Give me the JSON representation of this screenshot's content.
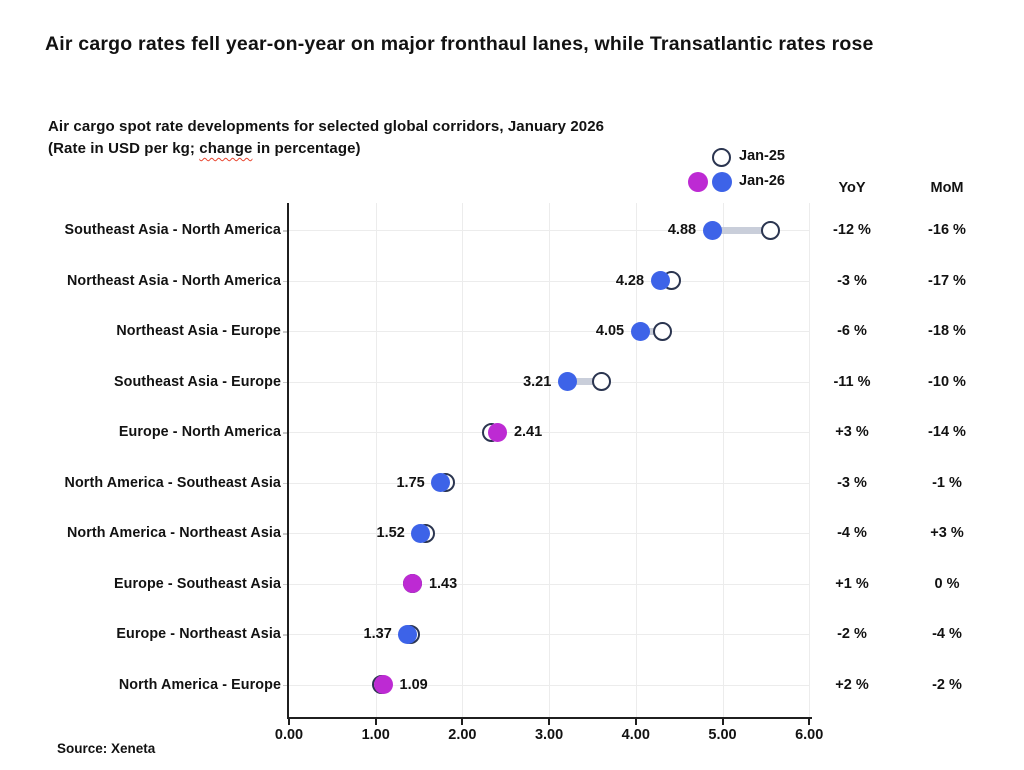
{
  "page": {
    "title": "Air cargo rates fell year-on-year on major fronthaul lanes, while Transatlantic rates rose",
    "subtitle_line1": "Air cargo spot rate developments for selected global corridors, January 2026",
    "subtitle_line2_prefix": "(Rate in USD per kg; ",
    "subtitle_line2_word": "change",
    "subtitle_line2_suffix": " in percentage)",
    "source": "Source: Xeneta"
  },
  "legend": {
    "jan25_label": "Jan-25",
    "jan26_label": "Jan-26"
  },
  "table_headers": {
    "yoy": "YoY",
    "mom": "MoM"
  },
  "colors": {
    "jan26_up_magenta": "#BD2AD3",
    "jan26_down_blue": "#3D63E8",
    "jan25_open_stroke": "#2B3550",
    "connector_gray": "#C9CEDA",
    "gridline": "#ECECEC",
    "axis": "#1F1F1F",
    "text": "#121212",
    "squiggle_red": "#E8442E"
  },
  "chart_data": {
    "type": "dumbbell",
    "title": "Air cargo spot rate developments for selected global corridors, January 2026",
    "unit": "Rate in USD per kg; change in percentage",
    "xlim": [
      0,
      6
    ],
    "x_ticks": [
      "0.00",
      "1.00",
      "2.00",
      "3.00",
      "4.00",
      "5.00",
      "6.00"
    ],
    "grid": true,
    "legend_position": "top-right",
    "series_names": [
      "Jan-25",
      "Jan-26"
    ],
    "rows": [
      {
        "corridor": "Southeast Asia - North America",
        "jan26": 4.88,
        "jan25_est": 5.55,
        "value_label": "4.88",
        "yoy": "-12 %",
        "mom": "-16 %",
        "direction": "down",
        "label_side": "left"
      },
      {
        "corridor": "Northeast Asia - North America",
        "jan26": 4.28,
        "jan25_est": 4.41,
        "value_label": "4.28",
        "yoy": "-3 %",
        "mom": "-17 %",
        "direction": "down",
        "label_side": "left"
      },
      {
        "corridor": "Northeast Asia - Europe",
        "jan26": 4.05,
        "jan25_est": 4.31,
        "value_label": "4.05",
        "yoy": "-6 %",
        "mom": "-18 %",
        "direction": "down",
        "label_side": "left"
      },
      {
        "corridor": "Southeast Asia - Europe",
        "jan26": 3.21,
        "jan25_est": 3.61,
        "value_label": "3.21",
        "yoy": "-11 %",
        "mom": "-10 %",
        "direction": "down",
        "label_side": "left"
      },
      {
        "corridor": "Europe - North America",
        "jan26": 2.41,
        "jan25_est": 2.34,
        "value_label": "2.41",
        "yoy": "+3 %",
        "mom": "-14 %",
        "direction": "up",
        "label_side": "right"
      },
      {
        "corridor": "North America - Southeast Asia",
        "jan26": 1.75,
        "jan25_est": 1.8,
        "value_label": "1.75",
        "yoy": "-3 %",
        "mom": "-1 %",
        "direction": "down",
        "label_side": "left"
      },
      {
        "corridor": "North America - Northeast Asia",
        "jan26": 1.52,
        "jan25_est": 1.58,
        "value_label": "1.52",
        "yoy": "-4 %",
        "mom": "+3 %",
        "direction": "down",
        "label_side": "left"
      },
      {
        "corridor": "Europe - Southeast Asia",
        "jan26": 1.43,
        "jan25_est": 1.42,
        "value_label": "1.43",
        "yoy": "+1 %",
        "mom": "0 %",
        "direction": "up",
        "label_side": "right"
      },
      {
        "corridor": "Europe - Northeast Asia",
        "jan26": 1.37,
        "jan25_est": 1.4,
        "value_label": "1.37",
        "yoy": "-2 %",
        "mom": "-4 %",
        "direction": "down",
        "label_side": "left"
      },
      {
        "corridor": "North America - Europe",
        "jan26": 1.09,
        "jan25_est": 1.07,
        "value_label": "1.09",
        "yoy": "+2 %",
        "mom": "-2 %",
        "direction": "up",
        "label_side": "right"
      }
    ]
  }
}
